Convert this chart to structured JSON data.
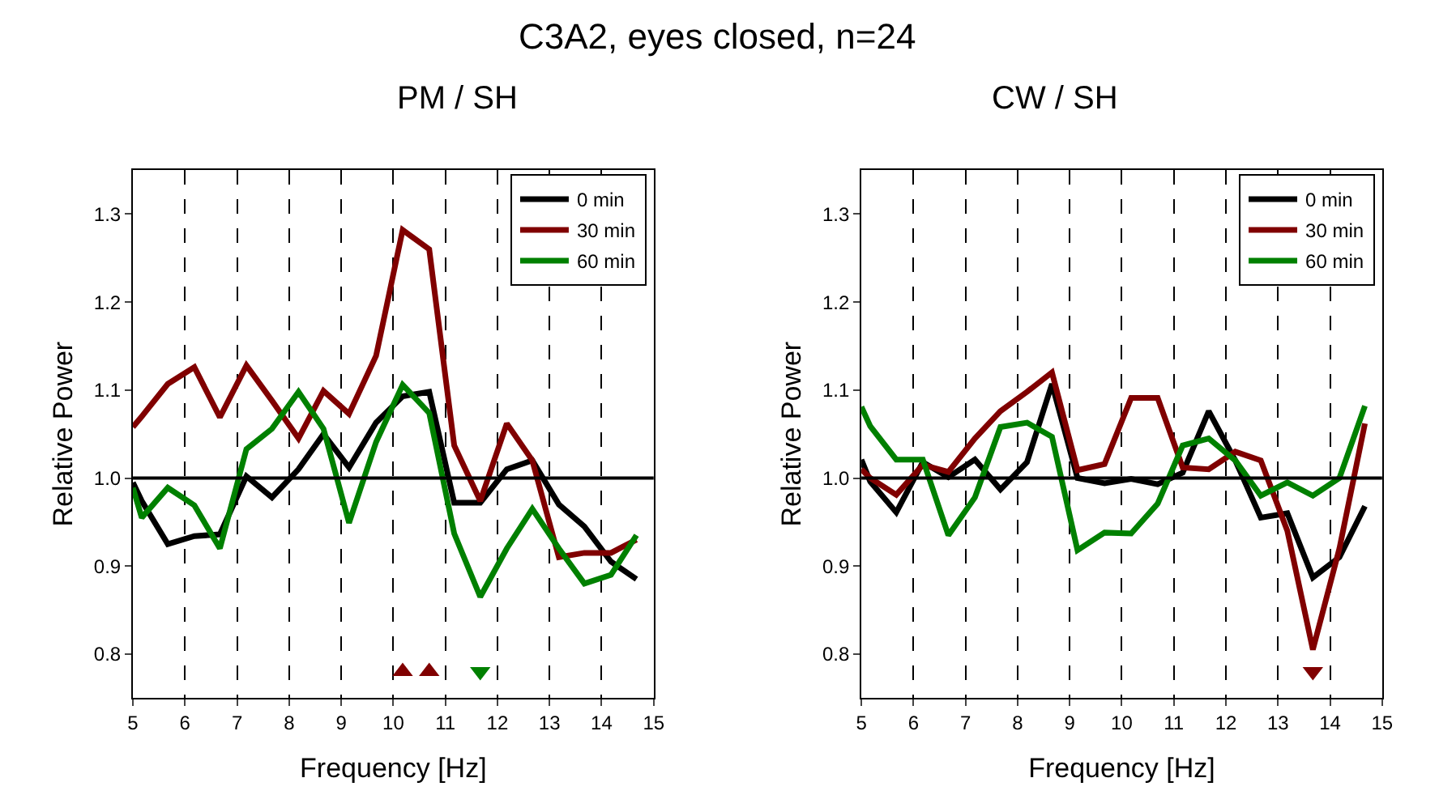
{
  "chart_data": [
    {
      "type": "line",
      "title": "PM / SH",
      "xlabel": "Frequency [Hz]",
      "ylabel": "Relative Power",
      "annotations": [
        "C3A2, eyes closed, n=24"
      ],
      "x": [
        5.0,
        5.17,
        5.67,
        6.18,
        6.67,
        7.18,
        7.67,
        8.18,
        8.66,
        9.15,
        9.67,
        10.18,
        10.69,
        11.17,
        11.67,
        12.18,
        12.67,
        13.18,
        13.67,
        14.18,
        14.67
      ],
      "series": [
        {
          "name": "0 min",
          "color": "#000000",
          "values": [
            0.995,
            0.974,
            0.925,
            0.934,
            0.936,
            1.002,
            0.978,
            1.01,
            1.05,
            1.012,
            1.063,
            1.093,
            1.098,
            0.972,
            0.972,
            1.01,
            1.02,
            0.97,
            0.945,
            0.905,
            0.885
          ]
        },
        {
          "name": "30 min",
          "color": "#800000",
          "values": [
            1.058,
            1.07,
            1.107,
            1.126,
            1.069,
            1.128,
            1.088,
            1.045,
            1.099,
            1.073,
            1.139,
            1.282,
            1.26,
            1.037,
            0.974,
            1.062,
            1.02,
            0.91,
            0.915,
            0.915,
            0.93
          ]
        },
        {
          "name": "60 min",
          "color": "#008000",
          "values": [
            0.989,
            0.955,
            0.989,
            0.969,
            0.92,
            1.033,
            1.056,
            1.098,
            1.056,
            0.949,
            1.041,
            1.106,
            1.074,
            0.937,
            0.865,
            0.92,
            0.965,
            0.92,
            0.88,
            0.89,
            0.935
          ]
        },
        {
          "type": "scatter",
          "marker": "triangle",
          "color": "#800000",
          "x": [
            10.18,
            10.69
          ],
          "values": [
            0.78,
            0.78
          ]
        },
        {
          "type": "scatter",
          "marker": "triangle-down",
          "color": "#008000",
          "x": [
            11.67
          ],
          "values": [
            0.78
          ]
        }
      ],
      "xlim": [
        5,
        15
      ],
      "xticks": [
        5,
        6,
        7,
        8,
        9,
        10,
        11,
        12,
        13,
        14,
        15
      ],
      "ylim": [
        0.75,
        1.35
      ],
      "yticks": [
        0.8,
        0.9,
        {
          "value": 1.0,
          "label": "1.0"
        },
        1.1,
        1.2,
        1.3
      ],
      "ref_lines": [
        {
          "axis": "y",
          "value": 1.0,
          "color": "#000000"
        }
      ],
      "grid": "x",
      "legend": "top right",
      "marker": "none",
      "line_style": "solid"
    },
    {
      "type": "line",
      "title": "CW / SH",
      "xlabel": "Frequency [Hz]",
      "ylabel": "Relative Power",
      "x": [
        5.0,
        5.17,
        5.67,
        6.18,
        6.67,
        7.18,
        7.67,
        8.18,
        8.66,
        9.15,
        9.67,
        10.18,
        10.69,
        11.17,
        11.67,
        12.18,
        12.67,
        13.18,
        13.67,
        14.18,
        14.67
      ],
      "series": [
        {
          "name": "0 min",
          "color": "#000000",
          "values": [
            1.021,
            0.996,
            0.961,
            1.018,
            1.001,
            1.021,
            0.987,
            1.018,
            1.107,
            1.0,
            0.994,
            0.999,
            0.993,
            1.006,
            1.076,
            1.02,
            0.955,
            0.96,
            0.887,
            0.91,
            0.968
          ]
        },
        {
          "name": "30 min",
          "color": "#800000",
          "values": [
            1.01,
            1.0,
            0.981,
            1.015,
            1.007,
            1.045,
            1.076,
            1.098,
            1.12,
            1.009,
            1.016,
            1.091,
            1.091,
            1.012,
            1.01,
            1.03,
            1.02,
            0.94,
            0.805,
            0.92,
            1.062
          ]
        },
        {
          "name": "60 min",
          "color": "#008000",
          "values": [
            1.081,
            1.059,
            1.021,
            1.021,
            0.935,
            0.978,
            1.058,
            1.063,
            1.047,
            0.918,
            0.938,
            0.937,
            0.971,
            1.037,
            1.045,
            1.02,
            0.98,
            0.995,
            0.98,
            1.0,
            1.082
          ]
        },
        {
          "type": "scatter",
          "marker": "triangle-down",
          "color": "#800000",
          "x": [
            13.67
          ],
          "values": [
            0.78
          ]
        }
      ],
      "xlim": [
        5,
        15
      ],
      "xticks": [
        5,
        6,
        7,
        8,
        9,
        10,
        11,
        12,
        13,
        14,
        15
      ],
      "ylim": [
        0.75,
        1.35
      ],
      "yticks": [
        0.8,
        0.9,
        {
          "value": 1.0,
          "label": "1.0"
        },
        1.1,
        1.2,
        1.3
      ],
      "ref_lines": [
        {
          "axis": "y",
          "value": 1.0,
          "color": "#000000"
        }
      ],
      "grid": "x",
      "legend": "top right",
      "marker": "none",
      "line_style": "solid"
    }
  ]
}
